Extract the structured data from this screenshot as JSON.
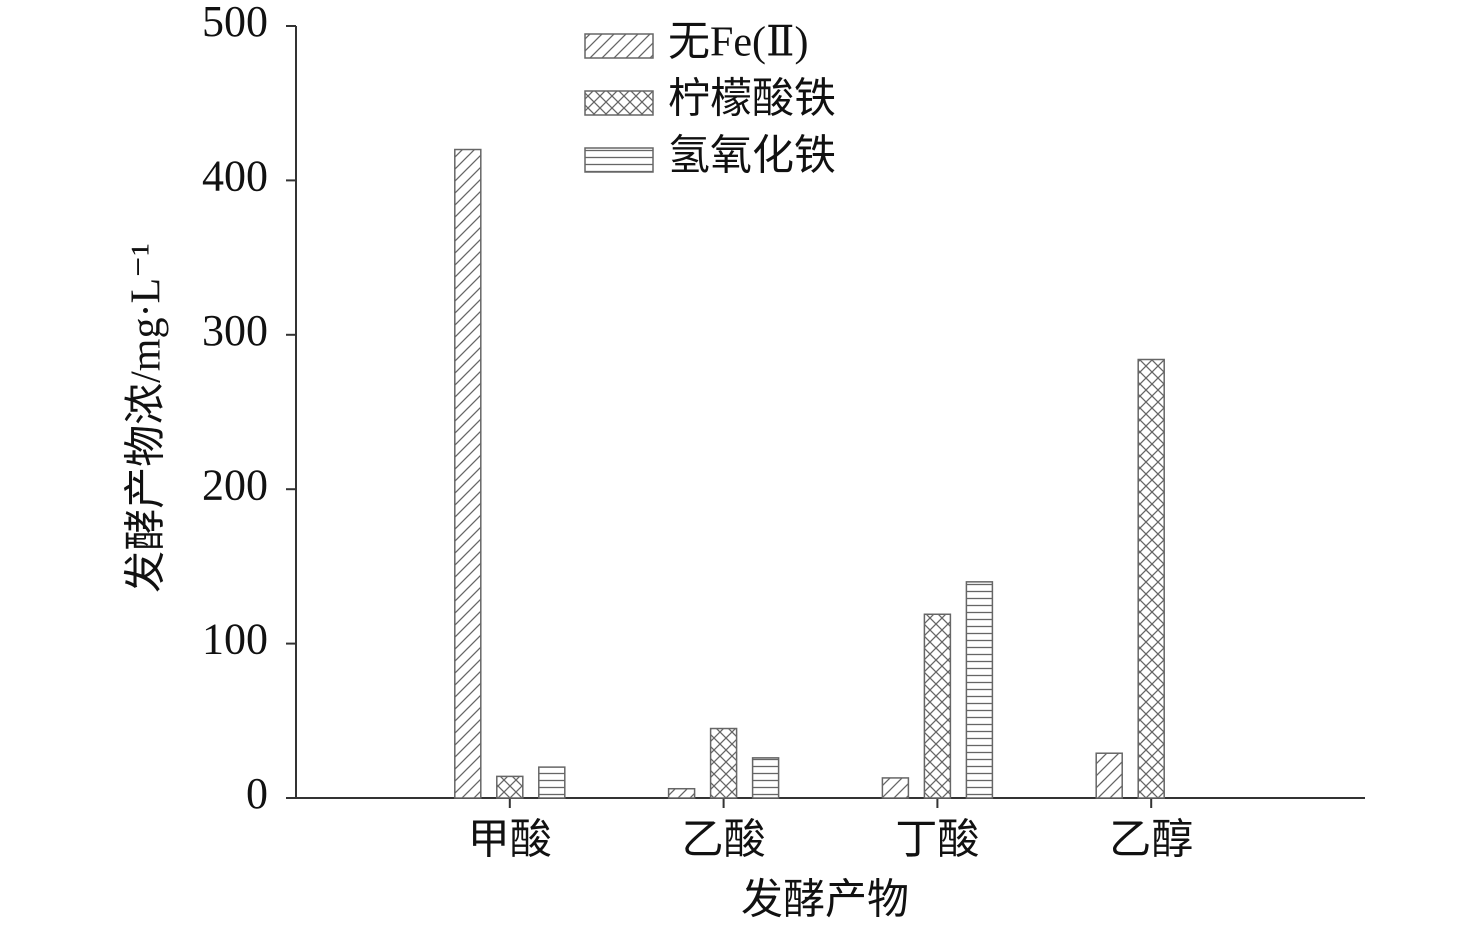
{
  "chart_data": {
    "type": "bar",
    "x_label": "发酵产物",
    "y_label": "发酵产物浓/mg·L⁻¹",
    "categories": [
      "甲酸",
      "乙酸",
      "丁酸",
      "乙醇"
    ],
    "series": [
      {
        "name": "无Fe(Ⅱ)",
        "color": "#666666",
        "hatch": "diagonal",
        "values": [
          420,
          6,
          13,
          29
        ]
      },
      {
        "name": "柠檬酸铁",
        "color": "#666666",
        "hatch": "cross",
        "values": [
          14,
          45,
          119,
          284
        ]
      },
      {
        "name": "氢氧化铁",
        "color": "#666666",
        "hatch": "horizontal",
        "values": [
          20,
          26,
          140,
          0
        ]
      }
    ],
    "ylim": [
      0,
      500
    ],
    "yticks": [
      0,
      100,
      200,
      300,
      400,
      500
    ],
    "grid": false
  }
}
